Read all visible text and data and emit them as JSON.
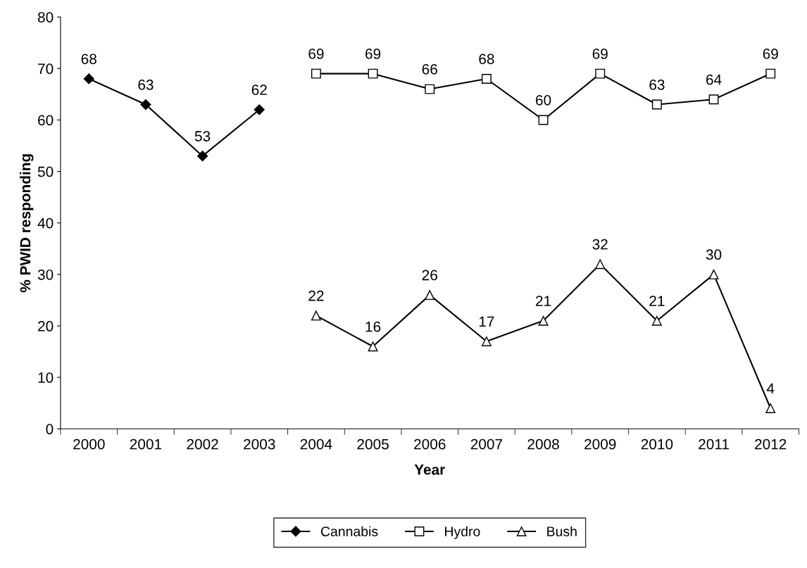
{
  "chart_data": {
    "type": "line",
    "xlabel": "Year",
    "ylabel": "% PWID responding",
    "categories": [
      "2000",
      "2001",
      "2002",
      "2003",
      "2004",
      "2005",
      "2006",
      "2007",
      "2008",
      "2009",
      "2010",
      "2011",
      "2012"
    ],
    "series": [
      {
        "name": "Cannabis",
        "color": "#000000",
        "marker": "diamond",
        "values": [
          68,
          63,
          53,
          62,
          null,
          null,
          null,
          null,
          null,
          null,
          null,
          null,
          null
        ]
      },
      {
        "name": "Hydro",
        "color": "#000000",
        "marker": "square",
        "values": [
          null,
          null,
          null,
          null,
          69,
          69,
          66,
          68,
          60,
          69,
          63,
          64,
          69
        ]
      },
      {
        "name": "Bush",
        "color": "#000000",
        "marker": "triangle",
        "values": [
          null,
          null,
          null,
          null,
          22,
          16,
          26,
          17,
          21,
          32,
          21,
          30,
          4
        ]
      }
    ],
    "ylim": [
      0,
      80
    ],
    "yticks": [
      0,
      10,
      20,
      30,
      40,
      50,
      60,
      70,
      80
    ],
    "data_labels": true,
    "grid": false,
    "legend": "bottom",
    "line_style": "solid"
  }
}
